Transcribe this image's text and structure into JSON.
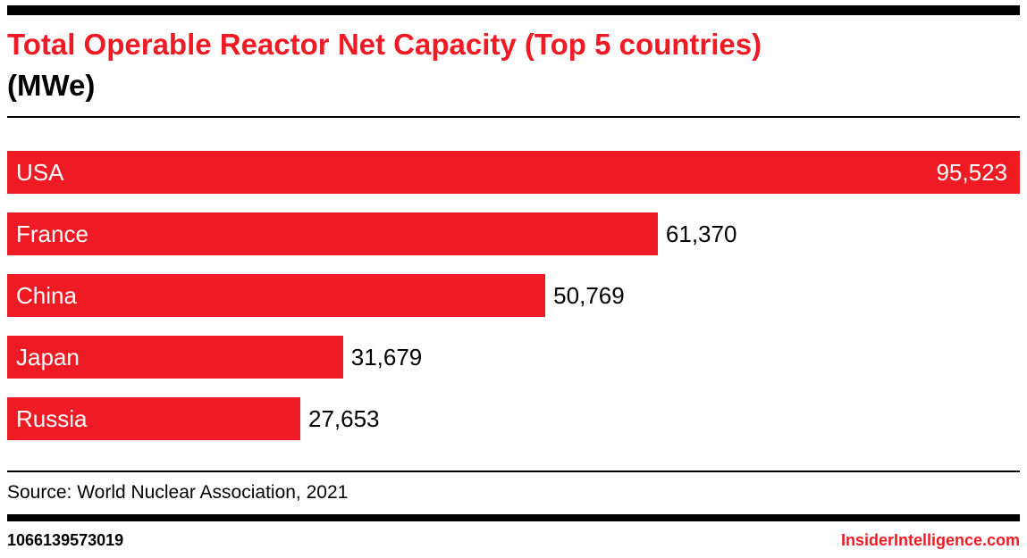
{
  "chart_data": {
    "type": "bar",
    "orientation": "horizontal",
    "title": "Total Operable Reactor Net Capacity (Top 5 countries)",
    "unit_label": "(MWe)",
    "categories": [
      "USA",
      "France",
      "China",
      "Japan",
      "Russia"
    ],
    "values": [
      95523,
      61370,
      50769,
      31679,
      27653
    ],
    "value_labels": [
      "95,523",
      "61,370",
      "50,769",
      "31,679",
      "27,653"
    ],
    "xlim": [
      0,
      95523
    ],
    "grid": false,
    "legend": false,
    "bar_color": "#ee1b24",
    "title_color": "#ee1b24",
    "value_label_color_inside": "#ffffff",
    "value_label_color_outside": "#000000"
  },
  "source": {
    "text": "Source: World Nuclear Association, 2021"
  },
  "footer": {
    "chart_id": "1066139573019",
    "site": "InsiderIntelligence.com"
  }
}
